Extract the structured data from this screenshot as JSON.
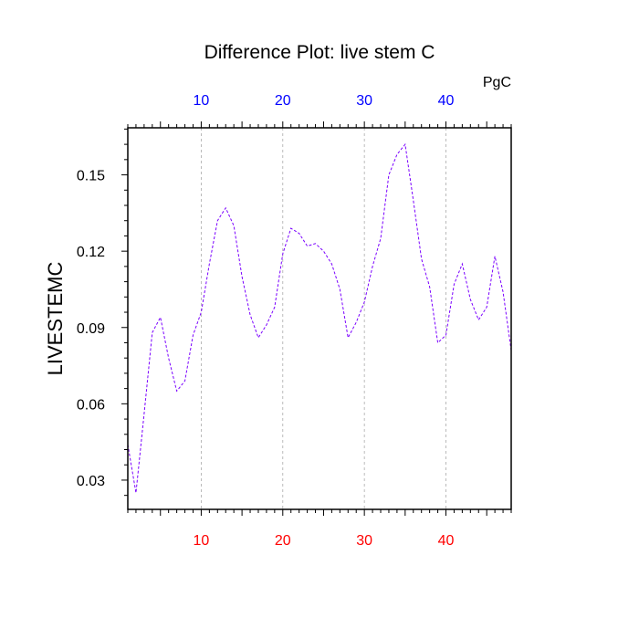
{
  "chart_data": {
    "type": "line",
    "title": "Difference Plot: live stem C",
    "ylabel": "LIVESTEMC",
    "units": "PgC",
    "xlim": [
      1,
      48
    ],
    "ylim": [
      0.0185,
      0.1685
    ],
    "x_ticks": [
      10,
      20,
      30,
      40
    ],
    "y_ticks": [
      0.03,
      0.06,
      0.09,
      0.12,
      0.15
    ],
    "y_tick_labels": [
      "0.03",
      "0.06",
      "0.09",
      "0.12",
      "0.15"
    ],
    "grid_x": true,
    "series": [
      {
        "x": [
          1,
          2,
          3,
          4,
          5,
          6,
          7,
          8,
          9,
          10,
          11,
          12,
          13,
          14,
          15,
          16,
          17,
          18,
          19,
          20,
          21,
          22,
          23,
          24,
          25,
          26,
          27,
          28,
          29,
          30,
          31,
          32,
          33,
          34,
          35,
          36,
          37,
          38,
          39,
          40,
          41,
          42,
          43,
          44,
          45,
          46,
          47,
          48
        ],
        "values": [
          0.044,
          0.025,
          0.056,
          0.088,
          0.094,
          0.078,
          0.065,
          0.069,
          0.087,
          0.096,
          0.115,
          0.132,
          0.137,
          0.13,
          0.11,
          0.095,
          0.086,
          0.091,
          0.098,
          0.119,
          0.129,
          0.127,
          0.122,
          0.123,
          0.12,
          0.115,
          0.105,
          0.086,
          0.092,
          0.1,
          0.114,
          0.125,
          0.15,
          0.158,
          0.162,
          0.14,
          0.117,
          0.106,
          0.084,
          0.087,
          0.107,
          0.115,
          0.101,
          0.093,
          0.098,
          0.118,
          0.104,
          0.081
        ],
        "color": "#7a00ff"
      }
    ],
    "colors": {
      "top_tick_labels": "#0000ff",
      "bottom_tick_labels": "#ff0000",
      "axis": "#000000",
      "grid": "#aaaaaa"
    }
  }
}
